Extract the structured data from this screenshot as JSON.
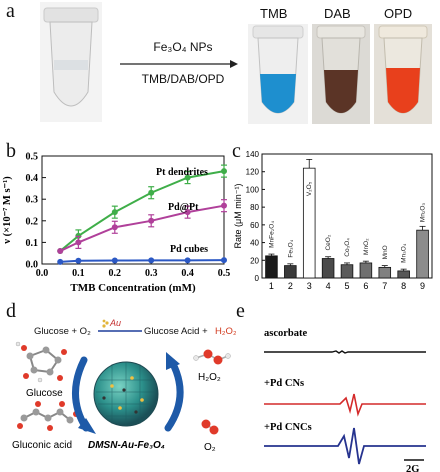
{
  "panels": {
    "a": {
      "letter": "a",
      "arrow_top": "Fe₃O₄ NPs",
      "arrow_bottom": "TMB/DAB/OPD",
      "tube_labels": [
        "TMB",
        "DAB",
        "OPD"
      ]
    },
    "b": {
      "letter": "b",
      "curve_labels": [
        "Pt dendrites",
        "Pd@Pt",
        "Pd cubes"
      ]
    },
    "c": {
      "letter": "c"
    },
    "d": {
      "letter": "d",
      "reaction_left": "Glucose + O₂",
      "reaction_catalyst": "Au",
      "reaction_right_a": "Glucose Acid + ",
      "reaction_right_b": "H₂O₂",
      "glucose": "Glucose",
      "gluconic": "Gluconic acid",
      "h2o2": "H₂O₂",
      "o2": "O₂",
      "center": "DMSN-Au-Fe₃O₄"
    },
    "e": {
      "letter": "e",
      "traces": [
        "ascorbate",
        "+Pd CNs",
        "+Pd CNCs"
      ],
      "scale": "2G"
    }
  },
  "chart_data": [
    {
      "type": "line",
      "panel": "b",
      "xlabel": "TMB Concentration (mM)",
      "ylabel": "ν (×10⁻⁷ M s⁻¹)",
      "xlim": [
        0.0,
        0.5
      ],
      "ylim": [
        0.0,
        0.5
      ],
      "xticks": [
        "0.0",
        "0.1",
        "0.2",
        "0.3",
        "0.4",
        "0.5"
      ],
      "yticks": [
        "0.0",
        "0.1",
        "0.2",
        "0.3",
        "0.4",
        "0.5"
      ],
      "x": [
        0.05,
        0.1,
        0.2,
        0.3,
        0.4,
        0.5
      ],
      "series": [
        {
          "name": "Pt dendrites",
          "color": "#3fae49",
          "values": [
            0.06,
            0.13,
            0.24,
            0.33,
            0.4,
            0.43
          ]
        },
        {
          "name": "Pd@Pt",
          "color": "#b0409a",
          "values": [
            0.06,
            0.1,
            0.17,
            0.2,
            0.24,
            0.27
          ]
        },
        {
          "name": "Pd cubes",
          "color": "#2b58c4",
          "values": [
            0.01,
            0.015,
            0.016,
            0.017,
            0.017,
            0.018
          ]
        }
      ]
    },
    {
      "type": "bar",
      "panel": "c",
      "ylabel": "Rate (μM min⁻¹)",
      "ylim": [
        0,
        140
      ],
      "yticks": [
        "0",
        "20",
        "40",
        "60",
        "80",
        "100",
        "120",
        "140"
      ],
      "categories": [
        "1",
        "2",
        "3",
        "4",
        "5",
        "6",
        "7",
        "8",
        "9"
      ],
      "bar_labels": [
        "MnFe₂O₄",
        "Fe₃O₄",
        "V₂O₅",
        "CeO₂",
        "Co₃O₄",
        "MnO₂",
        "MnO",
        "Mn₃O₄",
        "Mn₂O₃"
      ],
      "values": [
        25,
        14,
        124,
        22,
        15,
        17,
        12,
        8,
        54
      ],
      "colors": [
        "#1a1a1a",
        "#3a3a3a",
        "#ffffff",
        "#4a4a4a",
        "#5a5a5a",
        "#707070",
        "#808080",
        "#585858",
        "#8c8c8c"
      ]
    }
  ]
}
